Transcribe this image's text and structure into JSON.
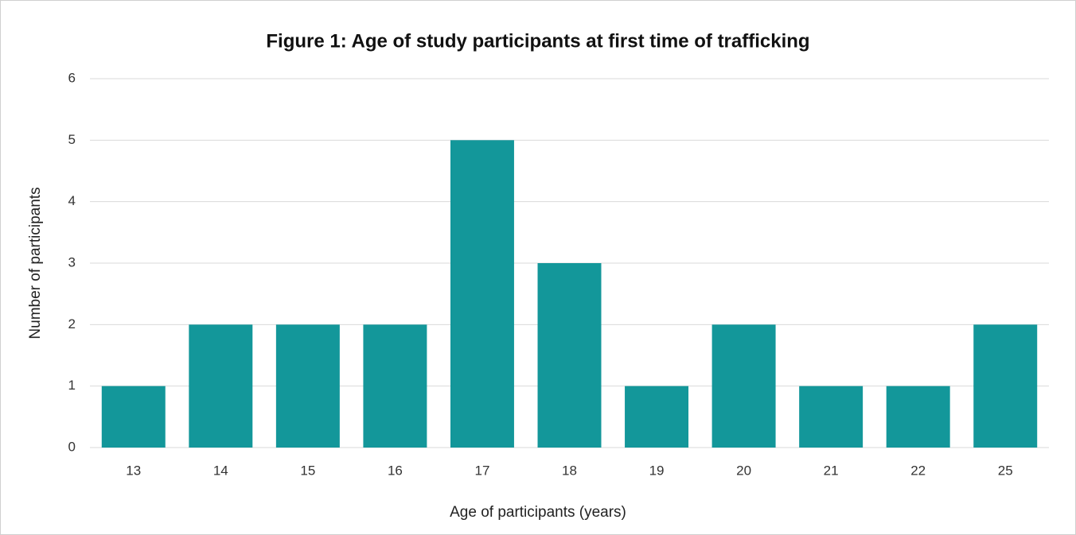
{
  "chart_data": {
    "type": "bar",
    "title": "Figure 1: Age of study participants at first time of trafficking",
    "x_label": "Age of participants (years)",
    "y_label": "Number of participants",
    "categories": [
      "13",
      "14",
      "15",
      "16",
      "17",
      "18",
      "19",
      "20",
      "21",
      "22",
      "25"
    ],
    "values": [
      1,
      2,
      2,
      2,
      5,
      3,
      1,
      2,
      1,
      1,
      2
    ],
    "color": "#13979a",
    "ylim": [
      0,
      6
    ],
    "yticks": [
      0,
      1,
      2,
      3,
      4,
      5,
      6
    ],
    "grid": true
  }
}
